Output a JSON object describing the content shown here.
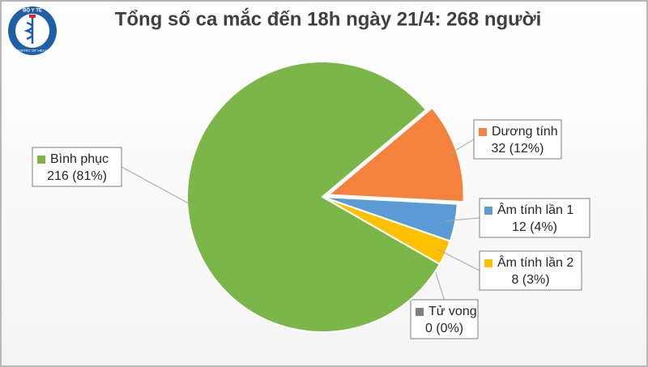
{
  "logo": {
    "top": "BỘ Y TẾ",
    "bottom": "MINISTRY OF HEALTH"
  },
  "chart_data": {
    "type": "pie",
    "title": "Tổng số ca mắc đến 18h ngày 21/4: 268 người",
    "categories": [
      "Dương tính",
      "Âm tính lần 1",
      "Âm tính lần 2",
      "Tử vong",
      "Bình phục"
    ],
    "values": [
      32,
      12,
      8,
      0,
      216
    ],
    "value_labels": [
      "32 (12%)",
      "12 (4%)",
      "8 (3%)",
      "0 (0%)",
      "216 (81%)"
    ],
    "colors": [
      "#f4813c",
      "#5b9bd5",
      "#ffc000",
      "#7f7f7f",
      "#7ab648"
    ]
  }
}
